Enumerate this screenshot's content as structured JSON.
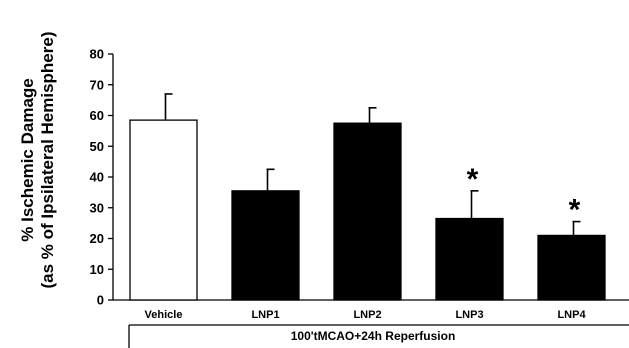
{
  "chart_data": {
    "type": "bar",
    "categories": [
      "Vehicle",
      "LNP1",
      "LNP2",
      "LNP3",
      "LNP4"
    ],
    "values": [
      58.5,
      35.5,
      57.5,
      26.5,
      21
    ],
    "errors": [
      8.5,
      7,
      5,
      9,
      4.5
    ],
    "significance": [
      "",
      "",
      "",
      "*",
      "*"
    ],
    "bar_fills": [
      "#ffffff",
      "#000000",
      "#000000",
      "#000000",
      "#000000"
    ],
    "ylabel_line1": "% Ischemic Damage",
    "ylabel_line2": "(as % of Ipsilateral Hemisphere)",
    "ylim": [
      0,
      80
    ],
    "yticks": [
      "0",
      "10",
      "20",
      "30",
      "40",
      "50",
      "60",
      "70",
      "80"
    ],
    "condition_label": "100'tMCAO+24h Reperfusion",
    "grid": false,
    "legend": "none"
  }
}
